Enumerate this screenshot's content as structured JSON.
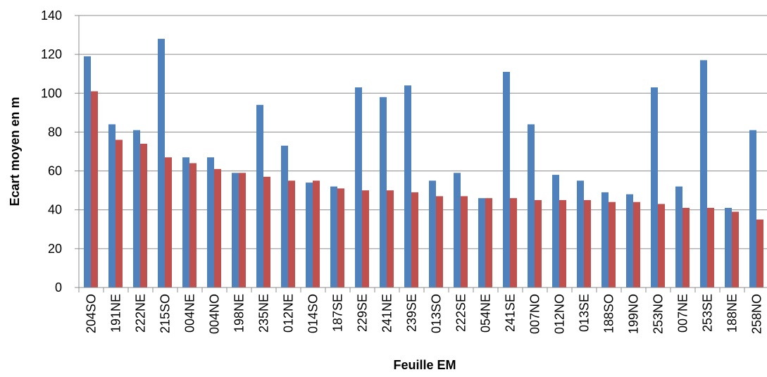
{
  "chart_data": {
    "type": "bar",
    "xlabel": "Feuille EM",
    "ylabel": "Ecart moyen en m",
    "ylim": [
      0,
      140
    ],
    "yticks": [
      0,
      20,
      40,
      60,
      80,
      100,
      120,
      140
    ],
    "grid": true,
    "legend": "none",
    "categories": [
      "204SO",
      "191NE",
      "222NE",
      "215SO",
      "004NE",
      "004NO",
      "198NE",
      "235NE",
      "012NE",
      "014SO",
      "187SE",
      "229SE",
      "241NE",
      "239SE",
      "013SO",
      "222SE",
      "054NE",
      "241SE",
      "007NO",
      "012NO",
      "013SE",
      "188SO",
      "199NO",
      "253NO",
      "007NE",
      "253SE",
      "188NE",
      "258NO"
    ],
    "series": [
      {
        "color": "#4f81bd",
        "values": [
          119,
          84,
          81,
          128,
          67,
          67,
          59,
          94,
          73,
          54,
          52,
          103,
          98,
          104,
          55,
          59,
          46,
          111,
          84,
          58,
          55,
          49,
          48,
          103,
          52,
          117,
          41,
          81
        ]
      },
      {
        "color": "#c0504d",
        "values": [
          101,
          76,
          74,
          67,
          64,
          61,
          59,
          57,
          55,
          55,
          51,
          50,
          50,
          49,
          47,
          47,
          46,
          46,
          45,
          45,
          45,
          44,
          44,
          43,
          41,
          41,
          39,
          35
        ]
      }
    ]
  }
}
